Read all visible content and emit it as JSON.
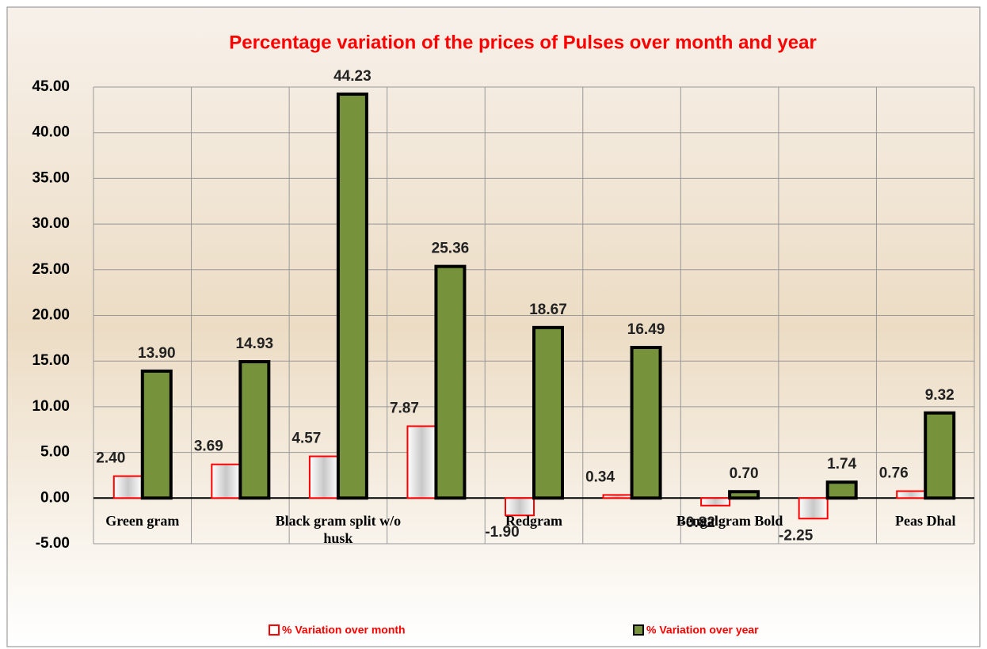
{
  "chart_data": {
    "type": "bar",
    "title": "Percentage variation of the prices of Pulses over month and year",
    "categories": [
      "Green gram",
      null,
      "Black gram  split w/o husk",
      null,
      "Redgram",
      null,
      "Bengalgram Bold",
      null,
      "Peas Dhal"
    ],
    "series": [
      {
        "name": "% Variation over month",
        "color": "#e8e8e8",
        "edge": "#ff0000",
        "values": [
          2.4,
          3.69,
          4.57,
          7.87,
          -1.9,
          0.34,
          -0.82,
          -2.25,
          0.76
        ],
        "value_labels": [
          "2.40",
          "3.69",
          "4.57",
          "7.87",
          "-1.90",
          "0.34",
          "-0.82",
          "-2.25",
          "0.76"
        ]
      },
      {
        "name": "% Variation over year",
        "color": "#76933c",
        "edge": "#000000",
        "values": [
          13.9,
          14.93,
          44.23,
          25.36,
          18.67,
          16.49,
          0.7,
          1.74,
          9.32
        ],
        "value_labels": [
          "13.90",
          "14.93",
          "44.23",
          "25.36",
          "18.67",
          "16.49",
          "0.70",
          "1.74",
          "9.32"
        ]
      }
    ],
    "ylim": [
      -5,
      45
    ],
    "yticks": [
      {
        "value": -5,
        "label": "-5.00"
      },
      {
        "value": 0,
        "label": "0.00"
      },
      {
        "value": 5,
        "label": "5.00"
      },
      {
        "value": 10,
        "label": "10.00"
      },
      {
        "value": 15,
        "label": "15.00"
      },
      {
        "value": 20,
        "label": "20.00"
      },
      {
        "value": 25,
        "label": "25.00"
      },
      {
        "value": 30,
        "label": "30.00"
      },
      {
        "value": 35,
        "label": "35.00"
      },
      {
        "value": 40,
        "label": "40.00"
      },
      {
        "value": 45,
        "label": "45.00"
      }
    ],
    "grid": true,
    "legend": "bottom"
  }
}
